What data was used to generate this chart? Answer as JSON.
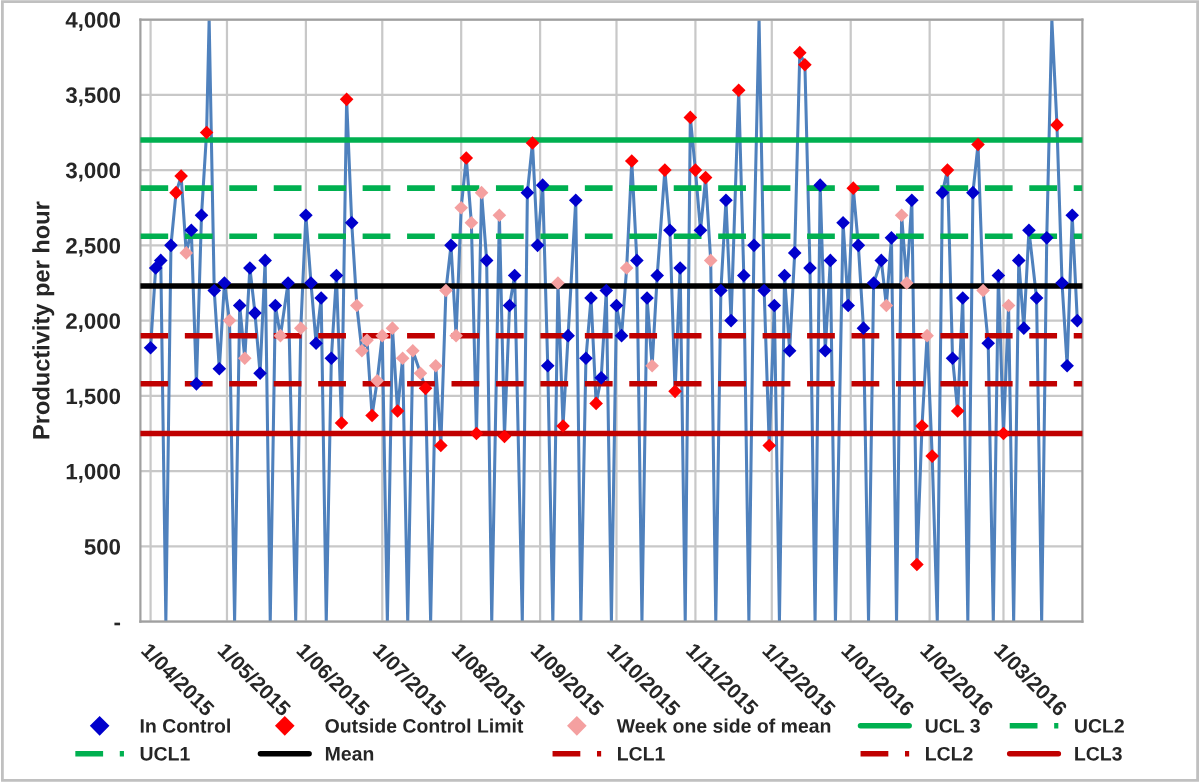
{
  "chart_data": {
    "type": "line",
    "ylabel": "Productivity per hour",
    "xlim": [
      "2015-03-28",
      "2016-04-01"
    ],
    "xticks": [
      {
        "value": "2015-04-01",
        "label": "1/04/2015"
      },
      {
        "value": "2015-05-01",
        "label": "1/05/2015"
      },
      {
        "value": "2015-06-01",
        "label": "1/06/2015"
      },
      {
        "value": "2015-07-01",
        "label": "1/07/2015"
      },
      {
        "value": "2015-08-01",
        "label": "1/08/2015"
      },
      {
        "value": "2015-09-01",
        "label": "1/09/2015"
      },
      {
        "value": "2015-10-01",
        "label": "1/10/2015"
      },
      {
        "value": "2015-11-01",
        "label": "1/11/2015"
      },
      {
        "value": "2015-12-01",
        "label": "1/12/2015"
      },
      {
        "value": "2016-01-01",
        "label": "1/01/2016"
      },
      {
        "value": "2016-02-01",
        "label": "1/02/2016"
      },
      {
        "value": "2016-03-01",
        "label": "1/03/2016"
      }
    ],
    "ylim": [
      0,
      4000
    ],
    "yticks": [
      {
        "value": 0,
        "label": "-"
      },
      500,
      {
        "value": 1000,
        "label": "1,000"
      },
      {
        "value": 1500,
        "label": "1,500"
      },
      {
        "value": 2000,
        "label": "2,000"
      },
      {
        "value": 2500,
        "label": "2,500"
      },
      {
        "value": 3000,
        "label": "3,000"
      },
      {
        "value": 3500,
        "label": "3,500"
      },
      {
        "value": 4000,
        "label": "4,000"
      }
    ],
    "grid": true,
    "legend": "bottom",
    "series": [
      {
        "marker": "none",
        "color": "#4f81bd",
        "x": [
          "2015-04-01",
          "2015-04-03",
          "2015-04-05",
          "2015-04-07",
          "2015-04-09",
          "2015-04-11",
          "2015-04-13",
          "2015-04-15",
          "2015-04-17",
          "2015-04-19",
          "2015-04-21",
          "2015-04-23",
          "2015-04-24",
          "2015-04-26",
          "2015-04-28",
          "2015-04-30",
          "2015-05-02",
          "2015-05-04",
          "2015-05-06",
          "2015-05-08",
          "2015-05-10",
          "2015-05-12",
          "2015-05-14",
          "2015-05-16",
          "2015-05-18",
          "2015-05-20",
          "2015-05-22",
          "2015-05-25",
          "2015-05-28",
          "2015-05-30",
          "2015-06-01",
          "2015-06-03",
          "2015-06-05",
          "2015-06-07",
          "2015-06-09",
          "2015-06-11",
          "2015-06-13",
          "2015-06-15",
          "2015-06-17",
          "2015-06-19",
          "2015-06-21",
          "2015-06-23",
          "2015-06-25",
          "2015-06-27",
          "2015-06-29",
          "2015-07-01",
          "2015-07-03",
          "2015-07-05",
          "2015-07-07",
          "2015-07-09",
          "2015-07-11",
          "2015-07-13",
          "2015-07-16",
          "2015-07-18",
          "2015-07-20",
          "2015-07-22",
          "2015-07-24",
          "2015-07-26",
          "2015-07-28",
          "2015-07-30",
          "2015-08-01",
          "2015-08-03",
          "2015-08-05",
          "2015-08-07",
          "2015-08-09",
          "2015-08-11",
          "2015-08-13",
          "2015-08-16",
          "2015-08-18",
          "2015-08-20",
          "2015-08-22",
          "2015-08-25",
          "2015-08-27",
          "2015-08-29",
          "2015-08-31",
          "2015-09-02",
          "2015-09-04",
          "2015-09-06",
          "2015-09-08",
          "2015-09-10",
          "2015-09-12",
          "2015-09-15",
          "2015-09-17",
          "2015-09-19",
          "2015-09-21",
          "2015-09-23",
          "2015-09-25",
          "2015-09-27",
          "2015-09-29",
          "2015-10-01",
          "2015-10-03",
          "2015-10-05",
          "2015-10-07",
          "2015-10-09",
          "2015-10-11",
          "2015-10-13",
          "2015-10-15",
          "2015-10-17",
          "2015-10-20",
          "2015-10-22",
          "2015-10-24",
          "2015-10-26",
          "2015-10-28",
          "2015-10-30",
          "2015-11-01",
          "2015-11-03",
          "2015-11-05",
          "2015-11-07",
          "2015-11-09",
          "2015-11-11",
          "2015-11-13",
          "2015-11-15",
          "2015-11-18",
          "2015-11-20",
          "2015-11-22",
          "2015-11-24",
          "2015-11-26",
          "2015-11-28",
          "2015-11-30",
          "2015-12-02",
          "2015-12-04",
          "2015-12-06",
          "2015-12-08",
          "2015-12-10",
          "2015-12-12",
          "2015-12-14",
          "2015-12-16",
          "2015-12-18",
          "2015-12-20",
          "2015-12-22",
          "2015-12-24",
          "2015-12-26",
          "2015-12-29",
          "2015-12-31",
          "2016-01-02",
          "2016-01-04",
          "2016-01-06",
          "2016-01-08",
          "2016-01-10",
          "2016-01-13",
          "2016-01-15",
          "2016-01-17",
          "2016-01-19",
          "2016-01-21",
          "2016-01-23",
          "2016-01-25",
          "2016-01-27",
          "2016-01-29",
          "2016-01-31",
          "2016-02-02",
          "2016-02-04",
          "2016-02-06",
          "2016-02-08",
          "2016-02-10",
          "2016-02-12",
          "2016-02-14",
          "2016-02-16",
          "2016-02-18",
          "2016-02-20",
          "2016-02-22",
          "2016-02-24",
          "2016-02-26",
          "2016-02-28",
          "2016-03-01",
          "2016-03-03",
          "2016-03-05",
          "2016-03-07",
          "2016-03-09",
          "2016-03-11",
          "2016-03-14",
          "2016-03-16",
          "2016-03-18",
          "2016-03-20",
          "2016-03-22",
          "2016-03-24",
          "2016-03-26",
          "2016-03-28",
          "2016-03-30"
        ],
        "values": [
          1820,
          2350,
          2400,
          0,
          2500,
          2850,
          2960,
          2450,
          2600,
          1580,
          2700,
          3250,
          4000,
          2200,
          1680,
          2250,
          2000,
          0,
          2100,
          1750,
          2350,
          2050,
          1650,
          2400,
          0,
          2100,
          1900,
          2250,
          0,
          1950,
          2700,
          2250,
          1850,
          2150,
          0,
          1750,
          2300,
          1320,
          3470,
          2650,
          2100,
          1800,
          1870,
          1370,
          1600,
          1900,
          0,
          1950,
          1400,
          1750,
          0,
          1800,
          1650,
          1550,
          0,
          1700,
          1170,
          2200,
          2500,
          1900,
          2750,
          3080,
          2650,
          1250,
          2850,
          2400,
          0,
          2700,
          1230,
          2100,
          2300,
          0,
          2850,
          3180,
          2500,
          2900,
          1700,
          0,
          2250,
          1300,
          1900,
          2800,
          0,
          1750,
          2150,
          1450,
          1620,
          2200,
          0,
          2100,
          1900,
          2350,
          3060,
          2400,
          0,
          2150,
          1700,
          2300,
          3000,
          2600,
          1530,
          2350,
          0,
          3350,
          3000,
          2600,
          2950,
          2400,
          0,
          2200,
          2800,
          2000,
          3530,
          2300,
          0,
          2500,
          4000,
          2200,
          1170,
          2100,
          0,
          2300,
          1800,
          2450,
          3780,
          3700,
          2350,
          0,
          2900,
          1800,
          2400,
          0,
          2650,
          2100,
          2880,
          2500,
          1950,
          0,
          2250,
          2400,
          2100,
          2550,
          0,
          2700,
          2250,
          2800,
          380,
          1300,
          1900,
          1100,
          0,
          2850,
          3000,
          1750,
          1400,
          2150,
          0,
          2850,
          3170,
          2200,
          1850,
          0,
          2300,
          1250,
          2100,
          0,
          2400,
          1950,
          2600,
          2150,
          0,
          2550,
          4000,
          3300,
          2250,
          1700,
          2700,
          2000
        ]
      },
      {
        "type": "scatter",
        "name": "In Control",
        "marker": "diamond",
        "color": "#0000cc",
        "x": [
          "2015-04-01",
          "2015-04-03",
          "2015-04-05",
          "2015-04-09",
          "2015-04-17",
          "2015-04-19",
          "2015-04-21",
          "2015-04-26",
          "2015-04-28",
          "2015-04-30",
          "2015-05-06",
          "2015-05-10",
          "2015-05-12",
          "2015-05-14",
          "2015-05-16",
          "2015-05-20",
          "2015-05-25",
          "2015-06-01",
          "2015-06-03",
          "2015-06-05",
          "2015-06-07",
          "2015-06-11",
          "2015-06-13",
          "2015-06-19",
          "2015-07-28",
          "2015-08-11",
          "2015-08-20",
          "2015-08-22",
          "2015-08-27",
          "2015-08-31",
          "2015-09-02",
          "2015-09-04",
          "2015-09-12",
          "2015-09-15",
          "2015-09-19",
          "2015-09-21",
          "2015-09-25",
          "2015-09-27",
          "2015-10-01",
          "2015-10-03",
          "2015-10-09",
          "2015-10-13",
          "2015-10-17",
          "2015-10-22",
          "2015-10-26",
          "2015-11-03",
          "2015-11-11",
          "2015-11-13",
          "2015-11-15",
          "2015-11-20",
          "2015-11-24",
          "2015-11-28",
          "2015-12-02",
          "2015-12-06",
          "2015-12-08",
          "2015-12-10",
          "2015-12-16",
          "2015-12-20",
          "2015-12-22",
          "2015-12-24",
          "2015-12-29",
          "2015-12-31",
          "2016-01-04",
          "2016-01-06",
          "2016-01-10",
          "2016-01-13",
          "2016-01-17",
          "2016-01-25",
          "2016-02-06",
          "2016-02-10",
          "2016-02-14",
          "2016-02-18",
          "2016-02-24",
          "2016-02-28",
          "2016-03-07",
          "2016-03-09",
          "2016-03-11",
          "2016-03-14",
          "2016-03-18",
          "2016-03-24",
          "2016-03-26",
          "2016-03-28",
          "2016-03-30"
        ],
        "values": [
          1820,
          2350,
          2400,
          2500,
          2600,
          1580,
          2700,
          2200,
          1680,
          2250,
          2100,
          2350,
          2050,
          1650,
          2400,
          2100,
          2250,
          2700,
          2250,
          1850,
          2150,
          1750,
          2300,
          2650,
          2500,
          2400,
          2100,
          2300,
          2850,
          2500,
          2900,
          1700,
          1900,
          2800,
          1750,
          2150,
          1620,
          2200,
          2100,
          1900,
          2400,
          2150,
          2300,
          2600,
          2350,
          2600,
          2200,
          2800,
          2000,
          2300,
          2500,
          2200,
          2100,
          2300,
          1800,
          2450,
          2350,
          2900,
          1800,
          2400,
          2650,
          2100,
          2500,
          1950,
          2250,
          2400,
          2550,
          2800,
          2850,
          1750,
          2150,
          2850,
          1850,
          2300,
          2400,
          1950,
          2600,
          2150,
          2550,
          2250,
          1700,
          2700,
          2000
        ]
      },
      {
        "type": "scatter",
        "name": "Outside Control Limit",
        "marker": "diamond",
        "color": "#ff0000",
        "x": [
          "2015-04-11",
          "2015-04-13",
          "2015-04-23",
          "2015-06-15",
          "2015-06-17",
          "2015-06-27",
          "2015-07-07",
          "2015-07-18",
          "2015-07-24",
          "2015-08-03",
          "2015-08-07",
          "2015-08-18",
          "2015-08-29",
          "2015-09-10",
          "2015-09-23",
          "2015-10-07",
          "2015-10-20",
          "2015-10-24",
          "2015-10-30",
          "2015-11-01",
          "2015-11-05",
          "2015-11-18",
          "2015-11-30",
          "2015-12-12",
          "2015-12-14",
          "2016-01-02",
          "2016-01-27",
          "2016-01-29",
          "2016-02-02",
          "2016-02-08",
          "2016-02-12",
          "2016-02-20",
          "2016-03-01",
          "2016-03-22"
        ],
        "values": [
          2850,
          2960,
          3250,
          1320,
          3470,
          1370,
          1400,
          1550,
          1170,
          3080,
          1250,
          1230,
          3180,
          1300,
          1450,
          3060,
          3000,
          1530,
          3350,
          3000,
          2950,
          3530,
          1170,
          3780,
          3700,
          2880,
          380,
          1300,
          1100,
          3000,
          1400,
          3170,
          1250,
          3300
        ]
      },
      {
        "type": "scatter",
        "name": "Week one side of mean",
        "marker": "diamond",
        "color": "#f4a0a0",
        "x": [
          "2015-04-15",
          "2015-05-02",
          "2015-05-08",
          "2015-05-22",
          "2015-05-30",
          "2015-06-21",
          "2015-06-23",
          "2015-06-25",
          "2015-06-29",
          "2015-07-01",
          "2015-07-05",
          "2015-07-09",
          "2015-07-13",
          "2015-07-16",
          "2015-07-22",
          "2015-07-26",
          "2015-07-30",
          "2015-08-01",
          "2015-08-05",
          "2015-08-09",
          "2015-08-16",
          "2015-09-08",
          "2015-10-05",
          "2015-10-15",
          "2015-11-07",
          "2016-01-15",
          "2016-01-21",
          "2016-01-23",
          "2016-01-31",
          "2016-02-22",
          "2016-03-03"
        ],
        "values": [
          2450,
          2000,
          1750,
          1900,
          1950,
          2100,
          1800,
          1870,
          1600,
          1900,
          1950,
          1750,
          1800,
          1650,
          1700,
          2200,
          1900,
          2750,
          2650,
          2850,
          2700,
          2250,
          2350,
          1700,
          2400,
          2100,
          2700,
          2250,
          1900,
          2200,
          2100
        ]
      }
    ],
    "ref_lines": [
      {
        "axis": "y",
        "value": 3200,
        "label": "UCL 3",
        "color": "#00b050",
        "line_style": "solid"
      },
      {
        "axis": "y",
        "value": 2880,
        "label": "UCL2",
        "color": "#00b050",
        "line_style": "dashed"
      },
      {
        "axis": "y",
        "value": 2560,
        "label": "UCL1",
        "color": "#00b050",
        "line_style": "dashed"
      },
      {
        "axis": "y",
        "value": 2230,
        "label": "Mean",
        "color": "#000000",
        "line_style": "solid"
      },
      {
        "axis": "y",
        "value": 1900,
        "label": "LCL1",
        "color": "#c00000",
        "line_style": "dashed"
      },
      {
        "axis": "y",
        "value": 1580,
        "label": "LCL2",
        "color": "#c00000",
        "line_style": "dashed"
      },
      {
        "axis": "y",
        "value": 1250,
        "label": "LCL3",
        "color": "#c00000",
        "line_style": "solid"
      }
    ]
  }
}
